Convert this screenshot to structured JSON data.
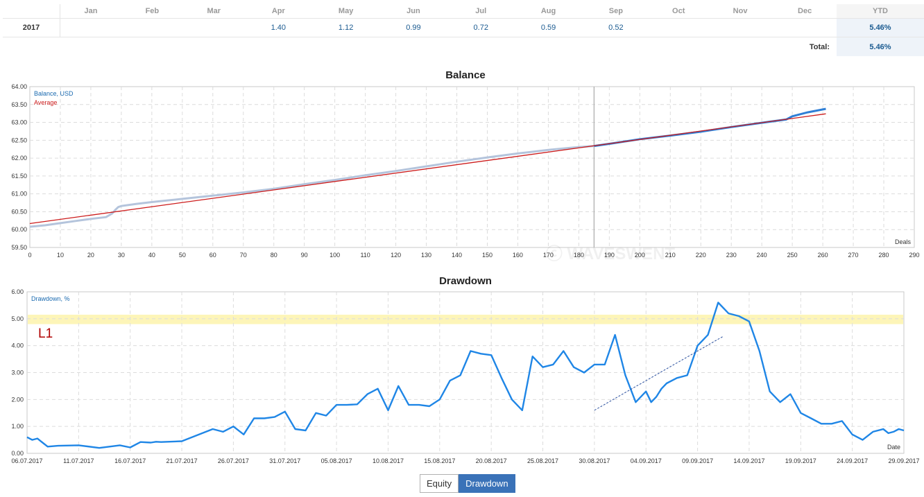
{
  "table": {
    "year_header": "",
    "months": [
      "Jan",
      "Feb",
      "Mar",
      "Apr",
      "May",
      "Jun",
      "Jul",
      "Aug",
      "Sep",
      "Oct",
      "Nov",
      "Dec"
    ],
    "ytd_header": "YTD",
    "row": {
      "year": "2017",
      "values": [
        "",
        "",
        "",
        "1.40",
        "1.12",
        "0.99",
        "0.72",
        "0.59",
        "0.52",
        "",
        "",
        ""
      ],
      "ytd": "5.46%"
    },
    "total_label": "Total:",
    "total_value": "5.46%"
  },
  "balance_title": "Balance",
  "drawdown_title": "Drawdown",
  "watermark": "ⓒ WAVESWENT",
  "tabs": {
    "equity": "Equity",
    "drawdown": "Drawdown"
  },
  "colors": {
    "balance_line": "#2f7fd6",
    "balance_history": "#b4c4dc",
    "average": "#cc1a1a",
    "drawdown": "#1f86e6",
    "level_band": "#fdf5b8",
    "l1": "#b00000",
    "trend": "#2a4f9e"
  },
  "chart_data": [
    {
      "type": "line",
      "title": "Balance",
      "xlabel": "Deals",
      "ylabel": "",
      "xlim": [
        0,
        290
      ],
      "ylim": [
        59.5,
        64.0
      ],
      "xticks": [
        "0",
        "10",
        "20",
        "30",
        "40",
        "50",
        "60",
        "70",
        "80",
        "90",
        "100",
        "110",
        "120",
        "130",
        "140",
        "150",
        "160",
        "170",
        "180",
        "190",
        "200",
        "210",
        "220",
        "230",
        "240",
        "250",
        "260",
        "270",
        "280",
        "290"
      ],
      "yticks": [
        "59.50",
        "60.00",
        "60.50",
        "61.00",
        "61.50",
        "62.00",
        "62.50",
        "63.00",
        "63.50",
        "64.00"
      ],
      "legend": [
        "Balance, USD",
        "Average"
      ],
      "divider_x": 185,
      "series": [
        {
          "name": "Balance, USD",
          "x": [
            0,
            5,
            10,
            15,
            20,
            25,
            27,
            28,
            29,
            30,
            35,
            40,
            50,
            60,
            70,
            80,
            90,
            100,
            110,
            120,
            130,
            140,
            150,
            160,
            170,
            180,
            185
          ],
          "y": [
            60.08,
            60.12,
            60.18,
            60.24,
            60.3,
            60.35,
            60.45,
            60.55,
            60.63,
            60.66,
            60.72,
            60.77,
            60.86,
            60.95,
            61.04,
            61.14,
            61.27,
            61.39,
            61.52,
            61.64,
            61.77,
            61.9,
            62.02,
            62.13,
            62.23,
            62.31,
            62.34
          ]
        },
        {
          "name": "Balance, USD",
          "x": [
            185,
            190,
            200,
            210,
            220,
            230,
            240,
            248,
            250,
            255,
            261
          ],
          "y": [
            62.34,
            62.4,
            62.53,
            62.63,
            62.74,
            62.87,
            62.99,
            63.08,
            63.17,
            63.28,
            63.38
          ]
        },
        {
          "name": "Average",
          "x": [
            0,
            261
          ],
          "y": [
            60.17,
            63.24
          ]
        }
      ]
    },
    {
      "type": "line",
      "title": "Drawdown",
      "xlabel": "Date",
      "ylabel": "",
      "xlim": [
        0,
        85
      ],
      "ylim": [
        0,
        6
      ],
      "xticks": [
        "06.07.2017",
        "11.07.2017",
        "16.07.2017",
        "21.07.2017",
        "26.07.2017",
        "31.07.2017",
        "05.08.2017",
        "10.08.2017",
        "15.08.2017",
        "20.08.2017",
        "25.08.2017",
        "30.08.2017",
        "04.09.2017",
        "09.09.2017",
        "14.09.2017",
        "19.09.2017",
        "24.09.2017",
        "29.09.2017"
      ],
      "yticks": [
        "0.00",
        "1.00",
        "2.00",
        "3.00",
        "4.00",
        "5.00",
        "6.00"
      ],
      "legend": [
        "Drawdown, %"
      ],
      "level_label": "L1",
      "level_band": [
        4.8,
        5.15
      ],
      "trendline": {
        "x": [
          55,
          67.5
        ],
        "y": [
          1.6,
          4.35
        ]
      },
      "series": [
        {
          "name": "Drawdown, %",
          "x": [
            0,
            0.5,
            1,
            1.5,
            2,
            3,
            5,
            7,
            8,
            9,
            10,
            11,
            12,
            12.5,
            13,
            15,
            18,
            19,
            20,
            21,
            22,
            23,
            24,
            25,
            26,
            27,
            28,
            29,
            30,
            31,
            32,
            33,
            34,
            35,
            36,
            37,
            38,
            39,
            40,
            41,
            42,
            43,
            44,
            45,
            46,
            47,
            48,
            49,
            50,
            51,
            52,
            53,
            54,
            55,
            56,
            57,
            58,
            59,
            60,
            60.5,
            61,
            61.5,
            62,
            63,
            64,
            65,
            66,
            67,
            68,
            69,
            70,
            71,
            72,
            73,
            74,
            75,
            76,
            77,
            78,
            79,
            80,
            81,
            82,
            83,
            83.5,
            84,
            84.5,
            85
          ],
          "y": [
            0.6,
            0.5,
            0.55,
            0.4,
            0.25,
            0.28,
            0.3,
            0.2,
            0.25,
            0.3,
            0.22,
            0.42,
            0.4,
            0.43,
            0.42,
            0.45,
            0.9,
            0.8,
            1.0,
            0.7,
            1.3,
            1.3,
            1.35,
            1.55,
            0.9,
            0.85,
            1.5,
            1.4,
            1.8,
            1.8,
            1.82,
            2.2,
            2.4,
            1.6,
            2.5,
            1.8,
            1.8,
            1.75,
            2.0,
            2.7,
            2.9,
            3.8,
            3.7,
            3.65,
            2.8,
            2.0,
            1.6,
            3.6,
            3.2,
            3.3,
            3.8,
            3.2,
            3.0,
            3.3,
            3.3,
            4.4,
            2.9,
            1.9,
            2.3,
            1.9,
            2.1,
            2.4,
            2.6,
            2.8,
            2.9,
            4.0,
            4.4,
            5.6,
            5.2,
            5.1,
            4.9,
            3.8,
            2.3,
            1.9,
            2.2,
            1.5,
            1.3,
            1.1,
            1.1,
            1.2,
            0.7,
            0.5,
            0.8,
            0.9,
            0.75,
            0.8,
            0.9,
            0.85
          ]
        }
      ]
    }
  ]
}
